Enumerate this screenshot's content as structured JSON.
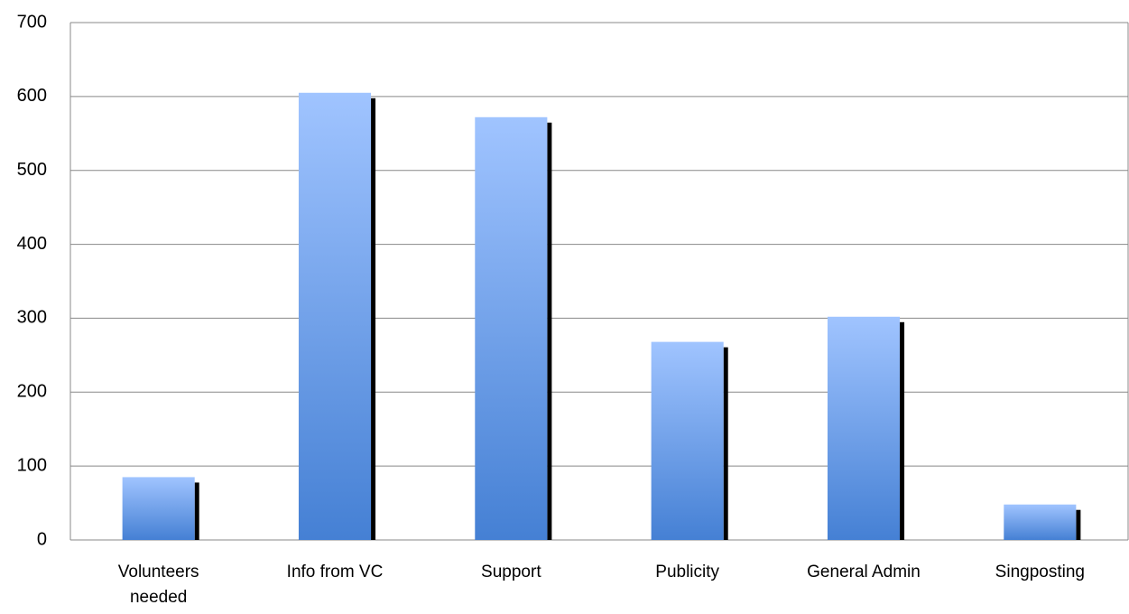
{
  "chart_data": {
    "type": "bar",
    "categories": [
      "Volunteers needed",
      "Info from VC",
      "Support",
      "Publicity",
      "General Admin",
      "Singposting"
    ],
    "values": [
      85,
      605,
      572,
      268,
      302,
      48
    ],
    "ylim": [
      0,
      700
    ],
    "yticks": [
      0,
      100,
      200,
      300,
      400,
      500,
      600,
      700
    ],
    "grid": true,
    "color": "#4a86d8"
  }
}
